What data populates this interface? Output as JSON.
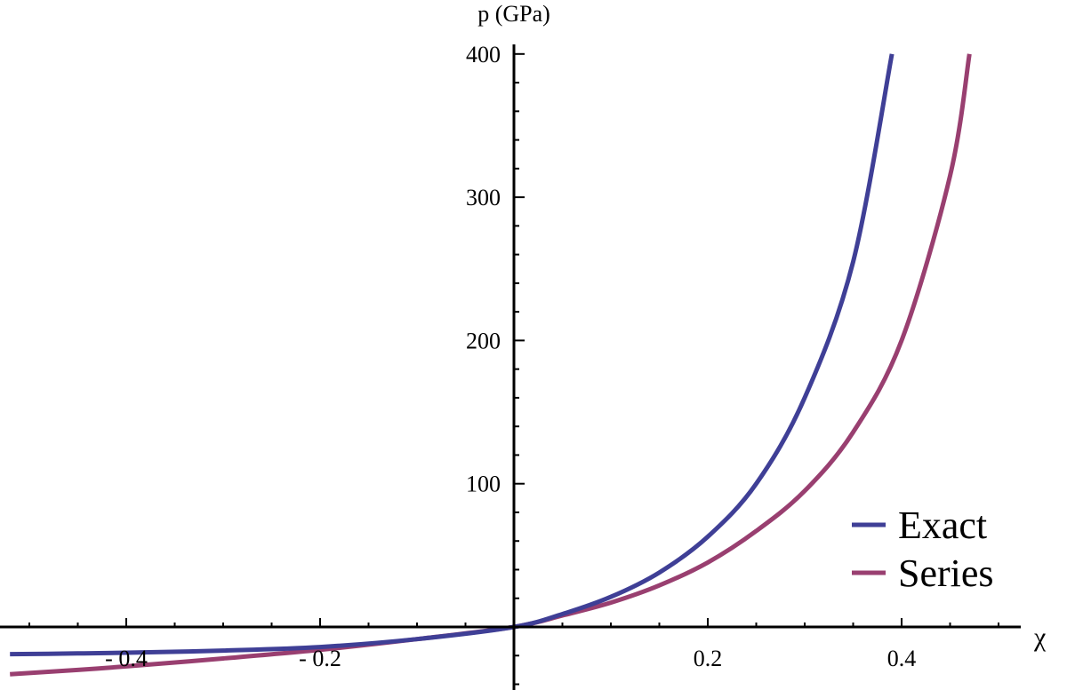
{
  "chart_data": {
    "type": "line",
    "title": "",
    "xlabel": "χ",
    "ylabel": "p (GPa)",
    "xlim": [
      -0.52,
      0.52
    ],
    "ylim": [
      -42,
      405
    ],
    "grid": false,
    "legend_position": "bottom-right",
    "x_ticks": [
      -0.4,
      -0.2,
      0.2,
      0.4
    ],
    "x_tick_labels": [
      "- 0.4",
      "- 0.2",
      "0.2",
      "0.4"
    ],
    "y_ticks": [
      100,
      200,
      300,
      400
    ],
    "y_tick_labels": [
      "100",
      "200",
      "300",
      "400"
    ],
    "series": [
      {
        "name": "Exact",
        "color": "#3f3f96",
        "x": [
          -0.52,
          -0.45,
          -0.4,
          -0.3,
          -0.2,
          -0.1,
          0,
          0.05,
          0.1,
          0.15,
          0.2,
          0.25,
          0.3,
          0.35,
          0.39
        ],
        "y": [
          -19,
          -18.5,
          -18,
          -16.5,
          -14,
          -8.5,
          0,
          9,
          21,
          38,
          63,
          100,
          160,
          255,
          400
        ]
      },
      {
        "name": "Series",
        "color": "#993f70",
        "x": [
          -0.52,
          -0.45,
          -0.4,
          -0.3,
          -0.2,
          -0.1,
          0,
          0.05,
          0.1,
          0.15,
          0.2,
          0.25,
          0.3,
          0.35,
          0.4,
          0.45,
          0.47
        ],
        "y": [
          -33,
          -30,
          -27.5,
          -22,
          -16,
          -8.5,
          0,
          8,
          17,
          29,
          45,
          67,
          95,
          136,
          200,
          315,
          400
        ]
      }
    ]
  }
}
